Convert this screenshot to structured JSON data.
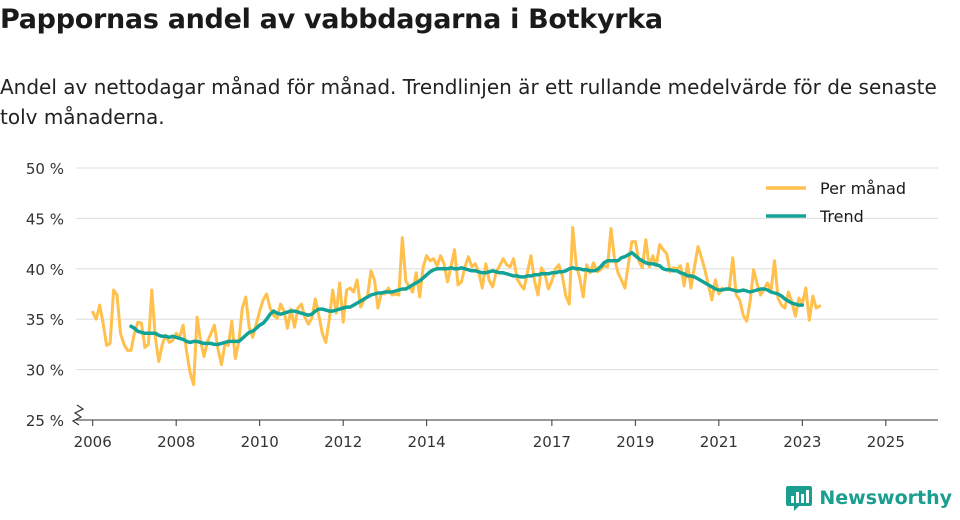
{
  "title": "Pappornas andel av vabbdagarna i Botkyrka",
  "subtitle": "Andel av nettodagar månad för månad. Trendlinjen är ett rullande medelvärde för de senaste tolv månaderna.",
  "brand": {
    "name": "Newsworthy"
  },
  "colors": {
    "monthly": "#ffc04d",
    "trend": "#13a396",
    "grid": "#dddddd",
    "axis": "#333333",
    "brand": "#1a9e8f"
  },
  "chart_data": {
    "type": "line",
    "title": "Pappornas andel av vabbdagarna i Botkyrka",
    "xlabel": "",
    "ylabel": "",
    "ylim": [
      25,
      50
    ],
    "xlim": [
      2005.6,
      2026.25
    ],
    "y_ticks": [
      25,
      30,
      35,
      40,
      45,
      50
    ],
    "y_tick_labels": [
      "25 %",
      "30 %",
      "35 %",
      "40 %",
      "45 %",
      "50 %"
    ],
    "x_ticks": [
      2006,
      2008,
      2010,
      2012,
      2014,
      2017,
      2019,
      2021,
      2023,
      2025
    ],
    "x_tick_labels": [
      "2006",
      "2008",
      "2010",
      "2012",
      "2014",
      "2017",
      "2019",
      "2021",
      "2023",
      "2025"
    ],
    "axis_break": true,
    "legend": {
      "position": "top-right",
      "entries": [
        "Per månad",
        "Trend"
      ]
    },
    "series": [
      {
        "name": "Per månad",
        "x_start": 2006.0,
        "step": 0.0833333,
        "values": [
          35.7,
          35.0,
          36.4,
          34.6,
          32.4,
          32.6,
          37.9,
          37.4,
          33.6,
          32.5,
          31.9,
          31.9,
          33.6,
          34.7,
          34.6,
          32.2,
          32.5,
          37.9,
          33.2,
          30.8,
          32.5,
          33.4,
          32.7,
          32.9,
          33.6,
          33.2,
          34.4,
          31.8,
          29.7,
          28.5,
          35.2,
          32.9,
          31.3,
          32.8,
          33.6,
          34.4,
          32.1,
          30.5,
          32.5,
          32.4,
          34.8,
          31.1,
          32.8,
          36.1,
          37.2,
          34.2,
          33.2,
          34.5,
          35.8,
          36.9,
          37.5,
          36.1,
          35.4,
          35.1,
          36.5,
          35.8,
          34.1,
          36.0,
          34.2,
          36.1,
          36.5,
          35.2,
          34.5,
          35.1,
          37.0,
          35.4,
          33.6,
          32.7,
          34.9,
          37.9,
          35.6,
          38.6,
          34.7,
          37.9,
          38.1,
          37.7,
          38.9,
          36.2,
          36.9,
          37.3,
          39.8,
          38.9,
          36.1,
          37.6,
          37.5,
          38.1,
          37.4,
          37.5,
          37.4,
          43.1,
          38.8,
          38.2,
          37.7,
          39.6,
          37.2,
          40.2,
          41.3,
          40.8,
          41.0,
          40.3,
          41.3,
          40.5,
          38.7,
          40.2,
          41.9,
          38.4,
          38.7,
          40.2,
          41.2,
          40.2,
          40.5,
          39.6,
          38.1,
          40.5,
          38.8,
          38.2,
          39.7,
          40.3,
          41.0,
          40.4,
          40.2,
          41.0,
          39.0,
          38.4,
          38.0,
          39.7,
          41.3,
          38.8,
          37.4,
          40.1,
          39.5,
          38.0,
          38.8,
          40.0,
          40.4,
          39.3,
          37.3,
          36.5,
          44.1,
          40.4,
          39.1,
          37.2,
          40.4,
          39.6,
          40.6,
          39.7,
          39.9,
          40.3,
          40.2,
          44.0,
          41.0,
          39.6,
          38.9,
          38.1,
          40.5,
          42.7,
          42.7,
          40.8,
          40.1,
          42.9,
          40.2,
          41.3,
          40.3,
          42.4,
          41.9,
          41.5,
          39.7,
          40.1,
          40.0,
          40.3,
          38.3,
          40.5,
          38.1,
          40.2,
          42.2,
          41.1,
          39.9,
          38.4,
          36.9,
          38.9,
          37.5,
          38.1,
          37.9,
          38.1,
          41.1,
          37.4,
          36.9,
          35.4,
          34.8,
          36.8,
          39.9,
          38.5,
          37.4,
          38.0,
          38.6,
          37.8,
          40.8,
          37.1,
          36.4,
          36.1,
          37.7,
          36.7,
          35.3,
          37.1,
          36.5,
          38.1,
          34.9,
          37.3,
          36.1,
          36.3
        ]
      },
      {
        "name": "Trend",
        "x_start": 2006.917,
        "step": 0.0833333,
        "values": [
          34.3,
          34.1,
          33.8,
          33.7,
          33.6,
          33.6,
          33.6,
          33.6,
          33.4,
          33.3,
          33.3,
          33.2,
          33.3,
          33.2,
          33.1,
          33.0,
          32.8,
          32.7,
          32.8,
          32.8,
          32.7,
          32.6,
          32.6,
          32.6,
          32.5,
          32.5,
          32.6,
          32.7,
          32.8,
          32.8,
          32.8,
          32.8,
          33.1,
          33.4,
          33.7,
          33.8,
          34.1,
          34.4,
          34.6,
          35.0,
          35.5,
          35.8,
          35.6,
          35.5,
          35.6,
          35.7,
          35.8,
          35.8,
          35.7,
          35.6,
          35.5,
          35.4,
          35.5,
          35.8,
          36.0,
          36.0,
          35.9,
          35.8,
          35.8,
          35.9,
          36.0,
          36.1,
          36.2,
          36.2,
          36.4,
          36.6,
          36.8,
          37.0,
          37.2,
          37.4,
          37.5,
          37.6,
          37.6,
          37.7,
          37.7,
          37.7,
          37.8,
          37.9,
          38.0,
          38.0,
          38.2,
          38.4,
          38.6,
          38.8,
          39.1,
          39.4,
          39.7,
          39.9,
          40.0,
          40.0,
          40.0,
          40.0,
          40.1,
          40.0,
          40.0,
          40.1,
          40.0,
          39.9,
          39.8,
          39.8,
          39.7,
          39.6,
          39.6,
          39.7,
          39.8,
          39.7,
          39.6,
          39.6,
          39.5,
          39.4,
          39.3,
          39.3,
          39.2,
          39.2,
          39.3,
          39.3,
          39.4,
          39.4,
          39.5,
          39.5,
          39.5,
          39.6,
          39.6,
          39.7,
          39.7,
          39.8,
          40.0,
          40.1,
          40.0,
          40.0,
          39.9,
          39.9,
          39.8,
          39.8,
          39.9,
          40.2,
          40.6,
          40.8,
          40.8,
          40.8,
          40.8,
          41.1,
          41.2,
          41.4,
          41.6,
          41.3,
          41.0,
          40.8,
          40.6,
          40.5,
          40.5,
          40.4,
          40.3,
          40.0,
          39.9,
          39.9,
          39.8,
          39.8,
          39.6,
          39.5,
          39.3,
          39.3,
          39.2,
          39.0,
          38.8,
          38.6,
          38.4,
          38.2,
          38.0,
          37.9,
          37.9,
          38.0,
          38.0,
          37.9,
          37.8,
          37.8,
          37.9,
          37.8,
          37.7,
          37.8,
          37.9,
          38.0,
          38.0,
          37.9,
          37.7,
          37.6,
          37.5,
          37.3,
          37.0,
          36.8,
          36.6,
          36.5,
          36.4,
          36.4
        ]
      }
    ]
  }
}
